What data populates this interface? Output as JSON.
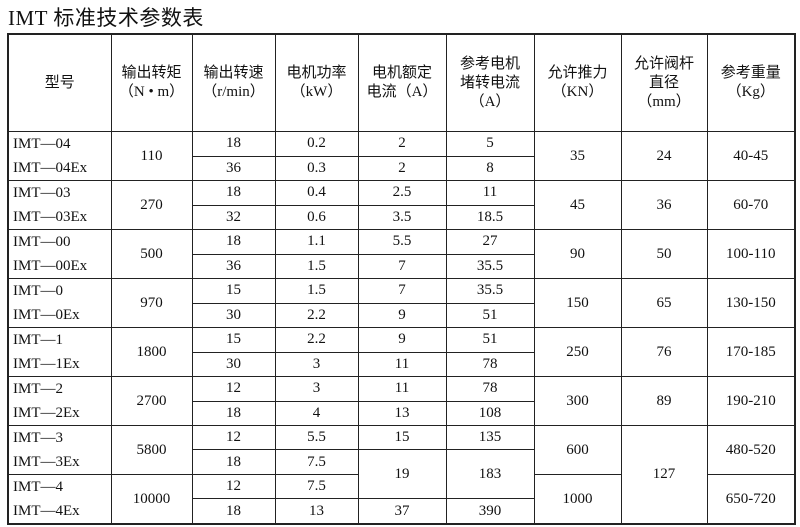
{
  "title": "IMT 标准技术参数表",
  "headers": [
    [
      "型号"
    ],
    [
      "输出转矩",
      "（N • m）"
    ],
    [
      "输出转速",
      "（r/min）"
    ],
    [
      "电机功率",
      "（kW）"
    ],
    [
      "电机额定",
      "电流（A）"
    ],
    [
      "参考电机",
      "堵转电流",
      "（A）"
    ],
    [
      "允许推力",
      "（KN）"
    ],
    [
      "允许阀杆",
      "直径",
      "（mm）"
    ],
    [
      "参考重量",
      "（Kg）"
    ]
  ],
  "rows": [
    [
      [
        "IMT—04",
        "IMT—04Ex"
      ],
      "110",
      "18",
      "0.2",
      "2",
      "5",
      "35",
      "24",
      "40-45"
    ],
    [
      null,
      null,
      "36",
      "0.3",
      "2",
      "8",
      null,
      null,
      null
    ],
    [
      [
        "IMT—03",
        "IMT—03Ex"
      ],
      "270",
      "18",
      "0.4",
      "2.5",
      "11",
      "45",
      "36",
      "60-70"
    ],
    [
      null,
      null,
      "32",
      "0.6",
      "3.5",
      "18.5",
      null,
      null,
      null
    ],
    [
      [
        "IMT—00",
        "IMT—00Ex"
      ],
      "500",
      "18",
      "1.1",
      "5.5",
      "27",
      "90",
      "50",
      "100-110"
    ],
    [
      null,
      null,
      "36",
      "1.5",
      "7",
      "35.5",
      null,
      null,
      null
    ],
    [
      [
        "IMT—0",
        "IMT—0Ex"
      ],
      "970",
      "15",
      "1.5",
      "7",
      "35.5",
      "150",
      "65",
      "130-150"
    ],
    [
      null,
      null,
      "30",
      "2.2",
      "9",
      "51",
      null,
      null,
      null
    ],
    [
      [
        "IMT—1",
        "IMT—1Ex"
      ],
      "1800",
      "15",
      "2.2",
      "9",
      "51",
      "250",
      "76",
      "170-185"
    ],
    [
      null,
      null,
      "30",
      "3",
      "11",
      "78",
      null,
      null,
      null
    ],
    [
      [
        "IMT—2",
        "IMT—2Ex"
      ],
      "2700",
      "12",
      "3",
      "11",
      "78",
      "300",
      "89",
      "190-210"
    ],
    [
      null,
      null,
      "18",
      "4",
      "13",
      "108",
      null,
      null,
      null
    ],
    [
      [
        "IMT—3",
        "IMT—3Ex"
      ],
      "5800",
      "12",
      "5.5",
      "15",
      "135",
      "600",
      "127",
      "480-520"
    ],
    [
      null,
      null,
      "18",
      "7.5",
      "19",
      "183",
      null,
      null,
      null
    ],
    [
      [
        "IMT—4",
        "IMT—4Ex"
      ],
      "10000",
      "12",
      "7.5",
      null,
      null,
      "1000",
      null,
      "650-720"
    ],
    [
      null,
      null,
      "18",
      "13",
      "37",
      "390",
      null,
      null,
      null
    ]
  ]
}
